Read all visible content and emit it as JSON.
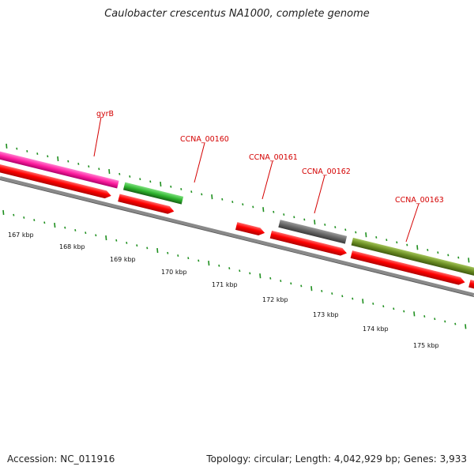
{
  "title": "Caulobacter crescentus NA1000, complete genome",
  "accession": "Accession: NC_011916",
  "topology": "Topology: circular; Length: 4,042,929 bp; Genes: 3,933",
  "colors": {
    "cds_red": "#ee0000",
    "gyrB_pink": "#ff1ea0",
    "green": "#2fb52f",
    "gray": "#6a6a6a",
    "olive": "#6b8e23",
    "tick_green": "#1e8f1e",
    "backbone": "#8a8a8a",
    "label_red": "#d40000"
  },
  "gene_labels": [
    {
      "id": "gyrB",
      "text": "gyrB"
    },
    {
      "id": "CCNA_00160",
      "text": "CCNA_00160"
    },
    {
      "id": "CCNA_00161",
      "text": "CCNA_00161"
    },
    {
      "id": "CCNA_00162",
      "text": "CCNA_00162"
    },
    {
      "id": "CCNA_00163",
      "text": "CCNA_00163"
    }
  ],
  "kbp_labels": [
    "167 kbp",
    "168 kbp",
    "169 kbp",
    "170 kbp",
    "171 kbp",
    "172 kbp",
    "173 kbp",
    "174 kbp",
    "175 kbp"
  ]
}
